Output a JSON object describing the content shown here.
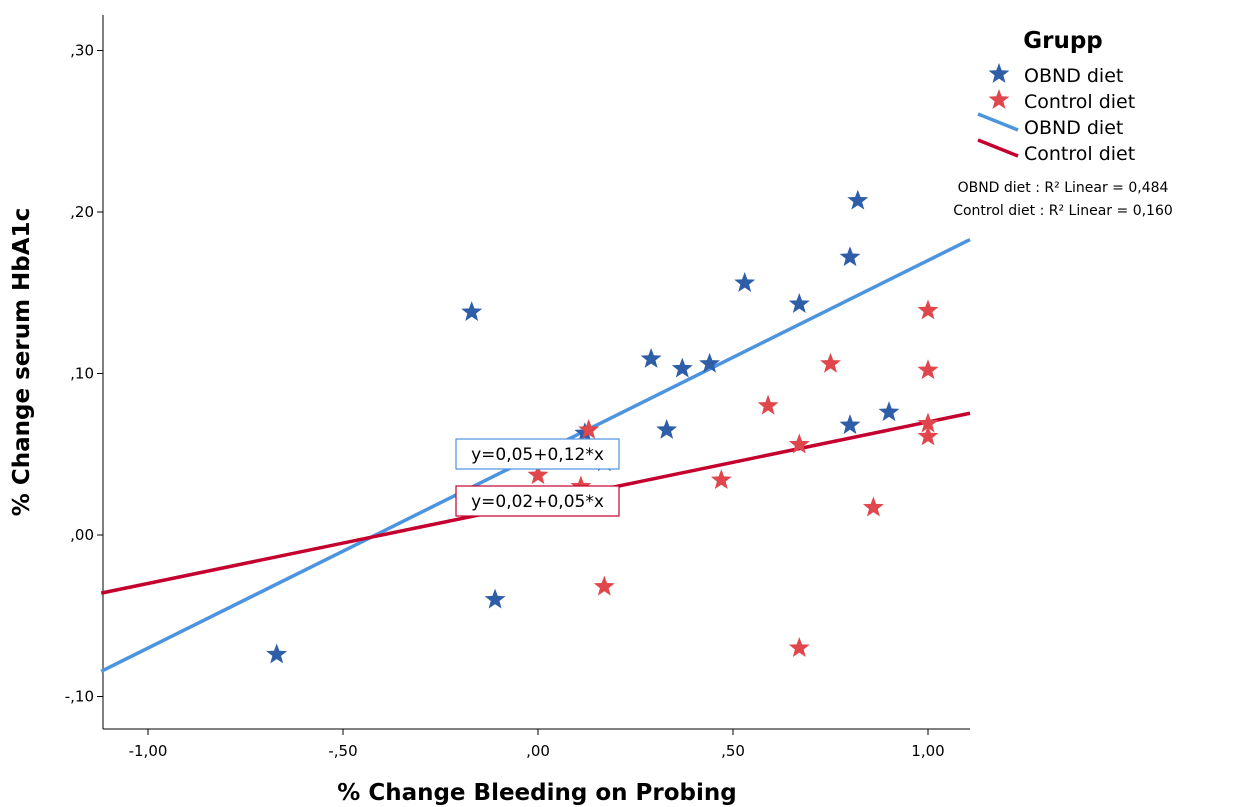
{
  "chart_data": {
    "type": "scatter",
    "xlabel": "% Change Bleeding on Probing",
    "ylabel": "% Change serum HbA1c",
    "xlim": [
      -1.12,
      1.12
    ],
    "ylim": [
      -0.12,
      0.33
    ],
    "x_ticks": [
      {
        "value": -1.0,
        "label": "-1,00"
      },
      {
        "value": -0.5,
        "label": "-,50"
      },
      {
        "value": 0.0,
        "label": ",00"
      },
      {
        "value": 0.5,
        "label": ",50"
      },
      {
        "value": 1.0,
        "label": "1,00"
      }
    ],
    "y_ticks": [
      {
        "value": -0.1,
        "label": "-,10"
      },
      {
        "value": 0.0,
        "label": ",00"
      },
      {
        "value": 0.1,
        "label": ",10"
      },
      {
        "value": 0.2,
        "label": ",20"
      },
      {
        "value": 0.3,
        "label": ",30"
      }
    ],
    "grid": false,
    "legend": {
      "position": "top-right",
      "title": "Grupp",
      "entries": [
        {
          "label": "OBND diet",
          "kind": "marker",
          "color": "#2f5ea8"
        },
        {
          "label": "Control diet",
          "kind": "marker",
          "color": "#e0474c"
        },
        {
          "label": "OBND diet",
          "kind": "line",
          "color": "#4d94e0"
        },
        {
          "label": "Control diet",
          "kind": "line",
          "color": "#c4002f"
        }
      ],
      "fit_stats": [
        "OBND diet : R² Linear = 0,484",
        "Control diet : R² Linear = 0,160"
      ]
    },
    "series": [
      {
        "name": "OBND diet",
        "color": "#2f5ea8",
        "marker": "star",
        "points": [
          [
            -0.67,
            -0.074
          ],
          [
            -0.17,
            0.138
          ],
          [
            -0.11,
            -0.04
          ],
          [
            0.12,
            0.063
          ],
          [
            0.17,
            0.045
          ],
          [
            0.29,
            0.109
          ],
          [
            0.33,
            0.065
          ],
          [
            0.37,
            0.103
          ],
          [
            0.44,
            0.106
          ],
          [
            0.53,
            0.156
          ],
          [
            0.67,
            0.143
          ],
          [
            0.8,
            0.068
          ],
          [
            0.8,
            0.172
          ],
          [
            0.82,
            0.207
          ],
          [
            0.9,
            0.076
          ]
        ]
      },
      {
        "name": "Control diet",
        "color": "#e0474c",
        "marker": "star",
        "points": [
          [
            0.0,
            0.037
          ],
          [
            0.11,
            0.03
          ],
          [
            0.13,
            0.065
          ],
          [
            0.17,
            -0.032
          ],
          [
            0.47,
            0.034
          ],
          [
            0.59,
            0.08
          ],
          [
            0.67,
            0.056
          ],
          [
            0.67,
            -0.07
          ],
          [
            0.75,
            0.106
          ],
          [
            0.86,
            0.017
          ],
          [
            1.0,
            0.139
          ],
          [
            1.0,
            0.102
          ],
          [
            1.0,
            0.069
          ],
          [
            1.0,
            0.061
          ]
        ]
      }
    ],
    "fit_lines": [
      {
        "series": "OBND diet",
        "color": "#4d94e0",
        "intercept": 0.05,
        "slope": 0.12,
        "equation": "y=0,05+0,12*x"
      },
      {
        "series": "Control diet",
        "color": "#c4002f",
        "intercept": 0.02,
        "slope": 0.05,
        "equation": "y=0,02+0,05*x"
      }
    ]
  }
}
